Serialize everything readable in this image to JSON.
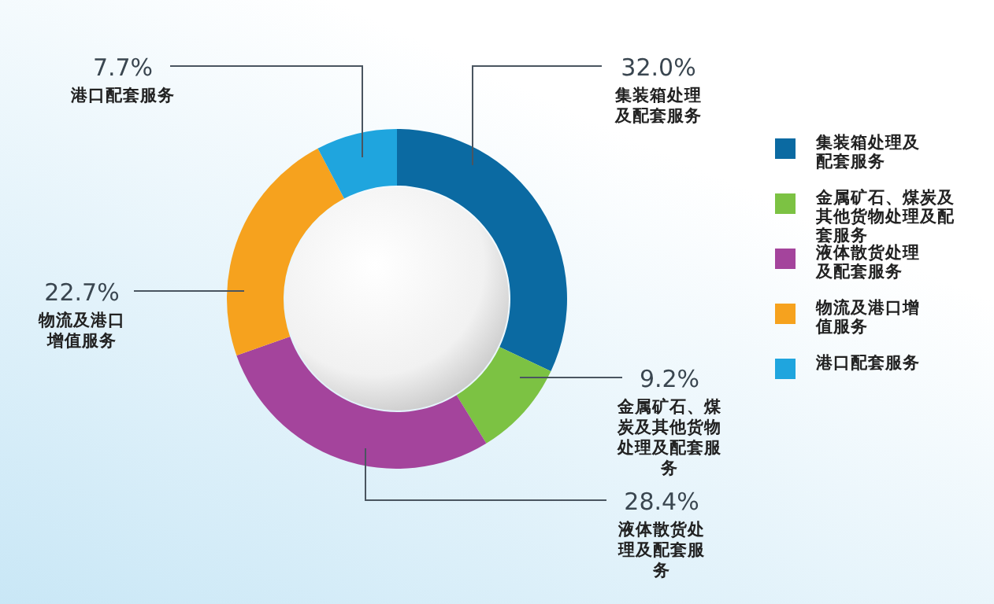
{
  "chart_data": {
    "type": "donut",
    "categories": [
      "集装箱处理及配套服务",
      "金属矿石、煤炭及其他货物处理及配套服务",
      "液体散货处理及配套服务",
      "物流及港口增值服务",
      "港口配套服务"
    ],
    "values": [
      32.0,
      9.2,
      28.4,
      22.7,
      7.7
    ],
    "value_labels": [
      "32.0%",
      "9.2%",
      "28.4%",
      "22.7%",
      "7.7%"
    ],
    "colors": [
      "#0b6aa2",
      "#7cc243",
      "#a4449c",
      "#f6a21e",
      "#1fa5de"
    ],
    "legend": "right"
  }
}
